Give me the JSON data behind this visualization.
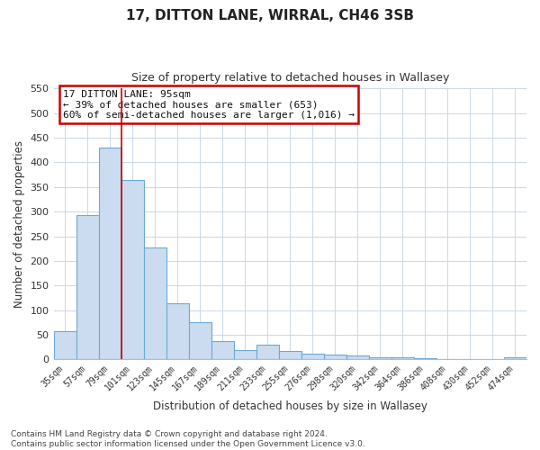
{
  "title1": "17, DITTON LANE, WIRRAL, CH46 3SB",
  "title2": "Size of property relative to detached houses in Wallasey",
  "xlabel": "Distribution of detached houses by size in Wallasey",
  "ylabel": "Number of detached properties",
  "categories": [
    "35sqm",
    "57sqm",
    "79sqm",
    "101sqm",
    "123sqm",
    "145sqm",
    "167sqm",
    "189sqm",
    "211sqm",
    "233sqm",
    "255sqm",
    "276sqm",
    "298sqm",
    "320sqm",
    "342sqm",
    "364sqm",
    "386sqm",
    "408sqm",
    "430sqm",
    "452sqm",
    "474sqm"
  ],
  "values": [
    57,
    293,
    430,
    365,
    228,
    113,
    76,
    37,
    18,
    29,
    17,
    11,
    10,
    8,
    4,
    5,
    3,
    1,
    0,
    0,
    5
  ],
  "bar_color": "#ccdcf0",
  "bar_edge_color": "#6aaad4",
  "vline_x": 3,
  "vline_color": "#cc0000",
  "ylim": [
    0,
    550
  ],
  "yticks": [
    0,
    50,
    100,
    150,
    200,
    250,
    300,
    350,
    400,
    450,
    500,
    550
  ],
  "annotation_box_text": "17 DITTON LANE: 95sqm\n← 39% of detached houses are smaller (653)\n60% of semi-detached houses are larger (1,016) →",
  "annotation_box_color": "#cc0000",
  "footnote": "Contains HM Land Registry data © Crown copyright and database right 2024.\nContains public sector information licensed under the Open Government Licence v3.0.",
  "background_color": "#ffffff",
  "grid_color": "#c8d8e8"
}
